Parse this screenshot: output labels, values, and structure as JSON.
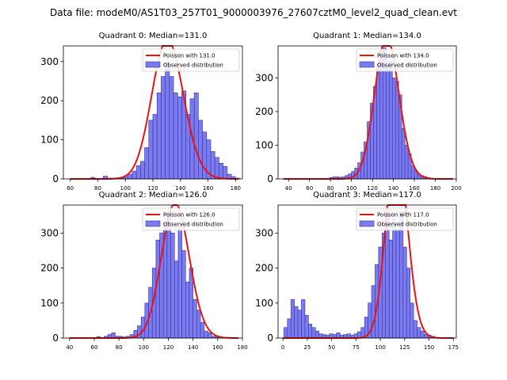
{
  "suptitle": "Data file: modeM0/AS1T03_257T01_9000003976_27607cztM0_level2_quad_clean.evt",
  "colors": {
    "hist_fill": "#7b7bee",
    "hist_edge": "#3333aa",
    "poisson": "#ee1111"
  },
  "chart_data": [
    {
      "type": "bar",
      "title": "Quadrant 0: Median=131.0",
      "median": 131,
      "xlim": [
        55,
        185
      ],
      "ylim": [
        0,
        340
      ],
      "xticks": [
        60,
        80,
        100,
        120,
        140,
        160,
        180
      ],
      "yticks": [
        0,
        100,
        200,
        300
      ],
      "legend": {
        "position": "top-right",
        "poisson": "Poisson with 131.0",
        "observed": "Observed distribution"
      },
      "bins": {
        "start": 60,
        "width": 3
      },
      "values": [
        0,
        0,
        0,
        0,
        0,
        4,
        0,
        0,
        7,
        2,
        2,
        3,
        3,
        6,
        12,
        20,
        34,
        45,
        80,
        150,
        165,
        220,
        262,
        300,
        262,
        220,
        210,
        225,
        165,
        205,
        220,
        150,
        120,
        100,
        70,
        55,
        40,
        32,
        12,
        6,
        2,
        0
      ]
    },
    {
      "type": "bar",
      "title": "Quadrant 1: Median=134.0",
      "median": 134,
      "xlim": [
        30,
        200
      ],
      "ylim": [
        0,
        395
      ],
      "xticks": [
        40,
        60,
        80,
        100,
        120,
        140,
        160,
        180,
        200
      ],
      "yticks": [
        0,
        100,
        200,
        300
      ],
      "legend": {
        "position": "top-right",
        "poisson": "Poisson with 134.0",
        "observed": "Observed distribution"
      },
      "bins": {
        "start": 37,
        "width": 3
      },
      "values": [
        0,
        0,
        0,
        0,
        0,
        0,
        0,
        0,
        0,
        0,
        0,
        0,
        0,
        0,
        4,
        6,
        6,
        5,
        6,
        10,
        15,
        22,
        32,
        48,
        80,
        110,
        170,
        225,
        275,
        340,
        380,
        390,
        330,
        350,
        300,
        290,
        250,
        150,
        100,
        75,
        40,
        25,
        15,
        10,
        7,
        4,
        2,
        0,
        0,
        0,
        0,
        0
      ]
    },
    {
      "type": "bar",
      "title": "Quadrant 2: Median=126.0",
      "median": 126,
      "xlim": [
        35,
        180
      ],
      "ylim": [
        0,
        380
      ],
      "xticks": [
        40,
        60,
        80,
        100,
        120,
        140,
        160,
        180
      ],
      "yticks": [
        0,
        100,
        200,
        300
      ],
      "legend": {
        "position": "top-right",
        "poisson": "Poisson with 126.0",
        "observed": "Observed distribution"
      },
      "bins": {
        "start": 38,
        "width": 3
      },
      "values": [
        0,
        0,
        0,
        0,
        0,
        0,
        0,
        0,
        4,
        0,
        5,
        10,
        15,
        5,
        5,
        3,
        5,
        10,
        22,
        35,
        60,
        100,
        145,
        200,
        280,
        300,
        330,
        360,
        300,
        220,
        320,
        250,
        160,
        200,
        110,
        80,
        45,
        20,
        15,
        5,
        3,
        0
      ]
    },
    {
      "type": "bar",
      "title": "Quadrant 3: Median=117.0",
      "median": 117,
      "xlim": [
        -5,
        178
      ],
      "ylim": [
        0,
        380
      ],
      "xticks": [
        0,
        25,
        50,
        75,
        100,
        125,
        150,
        175
      ],
      "yticks": [
        0,
        100,
        200,
        300
      ],
      "legend": {
        "position": "top-right",
        "poisson": "Poisson with 117.0",
        "observed": "Observed distribution"
      },
      "bins": {
        "start": 1,
        "width": 3.6
      },
      "values": [
        30,
        55,
        110,
        90,
        80,
        110,
        65,
        40,
        30,
        20,
        12,
        10,
        8,
        12,
        10,
        15,
        8,
        10,
        12,
        8,
        12,
        18,
        30,
        60,
        100,
        150,
        210,
        260,
        300,
        360,
        280,
        340,
        310,
        360,
        260,
        200,
        100,
        50,
        30,
        20,
        10,
        8,
        5,
        0,
        0,
        0,
        0
      ]
    }
  ]
}
